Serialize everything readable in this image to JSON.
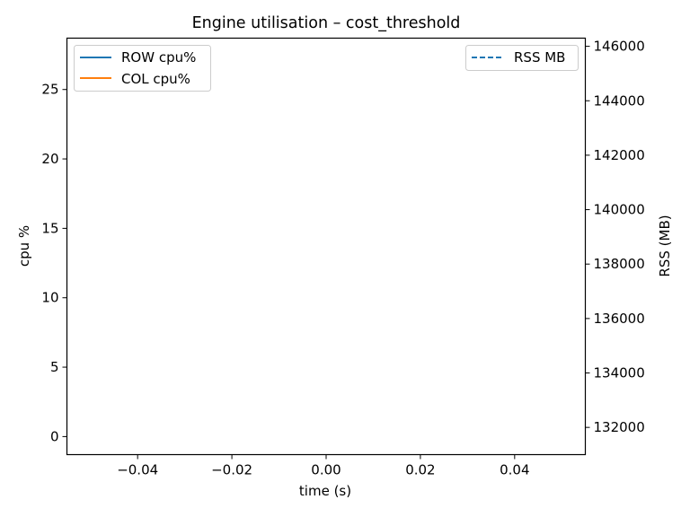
{
  "chart_data": {
    "type": "line",
    "title": "Engine utilisation – cost_threshold",
    "xlabel": "time (s)",
    "ylabel": "cpu %",
    "y2label": "RSS (MB)",
    "xlim": [
      -0.055,
      0.055
    ],
    "ylim": [
      -1.3,
      28.7
    ],
    "y2lim": [
      131000,
      146300
    ],
    "xticks": [
      -0.04,
      -0.02,
      0.0,
      0.02,
      0.04
    ],
    "xtick_labels": [
      "−0.04",
      "−0.02",
      "0.00",
      "0.02",
      "0.04"
    ],
    "yticks": [
      0,
      5,
      10,
      15,
      20,
      25
    ],
    "ytick_labels": [
      "0",
      "5",
      "10",
      "15",
      "20",
      "25"
    ],
    "y2ticks": [
      132000,
      134000,
      136000,
      138000,
      140000,
      142000,
      144000,
      146000
    ],
    "y2tick_labels": [
      "132000",
      "134000",
      "136000",
      "138000",
      "140000",
      "142000",
      "144000",
      "146000"
    ],
    "grid": false,
    "series": [
      {
        "name": "ROW cpu%",
        "axis": "left",
        "style": "solid",
        "color": "#1f77b4",
        "x": [],
        "y": []
      },
      {
        "name": "COL cpu%",
        "axis": "left",
        "style": "solid",
        "color": "#ff7f0e",
        "x": [],
        "y": []
      },
      {
        "name": "RSS MB",
        "axis": "right",
        "style": "dashed",
        "color": "#1f77b4",
        "x": [],
        "y": []
      }
    ],
    "legends": [
      {
        "placement": "top-left",
        "entries": [
          "ROW cpu%",
          "COL cpu%"
        ]
      },
      {
        "placement": "top-right",
        "entries": [
          "RSS MB"
        ]
      }
    ]
  }
}
